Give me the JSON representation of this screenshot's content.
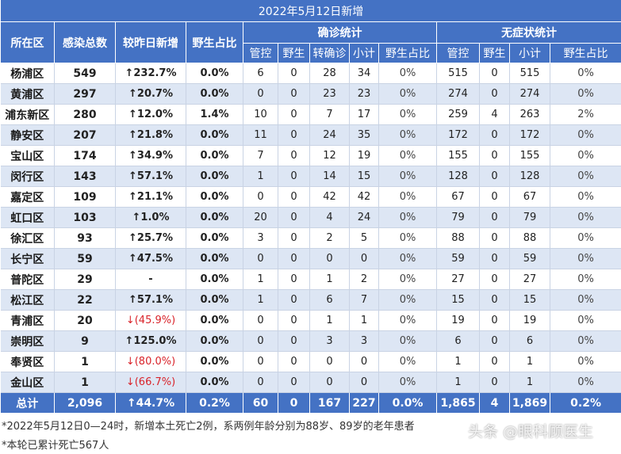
{
  "title": "2022年5月12日新增",
  "headers": {
    "district": "所在区",
    "total": "感染总数",
    "change": "较昨日新增",
    "wild_ratio": "野生占比",
    "confirmed_group": "确诊统计",
    "asymptomatic_group": "无症状统计",
    "confirmed_sub": [
      "管控",
      "野生",
      "转确诊",
      "小计",
      "野生占比"
    ],
    "asymptomatic_sub": [
      "管控",
      "野生",
      "小计",
      "野生占比"
    ]
  },
  "chart_data": {
    "type": "table",
    "columns": [
      "所在区",
      "感染总数",
      "较昨日新增",
      "野生占比",
      "确诊-管控",
      "确诊-野生",
      "确诊-转确诊",
      "确诊-小计",
      "确诊-野生占比",
      "无症状-管控",
      "无症状-野生",
      "无症状-小计",
      "无症状-野生占比"
    ],
    "rows": [
      [
        "杨浦区",
        "549",
        "↑232.7%",
        "0.0%",
        "6",
        "0",
        "28",
        "34",
        "0%",
        "515",
        "0",
        "515",
        "0%"
      ],
      [
        "黄浦区",
        "297",
        "↑20.7%",
        "0.0%",
        "0",
        "0",
        "23",
        "23",
        "0%",
        "274",
        "0",
        "274",
        "0%"
      ],
      [
        "浦东新区",
        "280",
        "↑12.0%",
        "1.4%",
        "10",
        "0",
        "7",
        "17",
        "0%",
        "259",
        "4",
        "263",
        "2%"
      ],
      [
        "静安区",
        "207",
        "↑21.8%",
        "0.0%",
        "11",
        "0",
        "24",
        "35",
        "0%",
        "172",
        "0",
        "172",
        "0%"
      ],
      [
        "宝山区",
        "174",
        "↑34.9%",
        "0.0%",
        "7",
        "0",
        "12",
        "19",
        "0%",
        "155",
        "0",
        "155",
        "0%"
      ],
      [
        "闵行区",
        "143",
        "↑57.1%",
        "0.0%",
        "1",
        "0",
        "14",
        "15",
        "0%",
        "128",
        "0",
        "128",
        "0%"
      ],
      [
        "嘉定区",
        "109",
        "↑21.1%",
        "0.0%",
        "0",
        "0",
        "42",
        "42",
        "0%",
        "67",
        "0",
        "67",
        "0%"
      ],
      [
        "虹口区",
        "103",
        "↑1.0%",
        "0.0%",
        "20",
        "0",
        "4",
        "24",
        "0%",
        "79",
        "0",
        "79",
        "0%"
      ],
      [
        "徐汇区",
        "93",
        "↑25.7%",
        "0.0%",
        "3",
        "0",
        "2",
        "5",
        "0%",
        "88",
        "0",
        "88",
        "0%"
      ],
      [
        "长宁区",
        "59",
        "↑47.5%",
        "0.0%",
        "0",
        "0",
        "0",
        "0",
        "0%",
        "59",
        "0",
        "59",
        "0%"
      ],
      [
        "普陀区",
        "29",
        "-",
        "0.0%",
        "1",
        "0",
        "1",
        "2",
        "0%",
        "27",
        "0",
        "27",
        "0%"
      ],
      [
        "松江区",
        "22",
        "↑57.1%",
        "0.0%",
        "1",
        "0",
        "6",
        "7",
        "0%",
        "15",
        "0",
        "15",
        "0%"
      ],
      [
        "青浦区",
        "20",
        "↓(45.9%)",
        "0.0%",
        "0",
        "0",
        "1",
        "1",
        "0%",
        "19",
        "0",
        "19",
        "0%"
      ],
      [
        "崇明区",
        "9",
        "↑125.0%",
        "0.0%",
        "0",
        "0",
        "3",
        "3",
        "0%",
        "6",
        "0",
        "6",
        "0%"
      ],
      [
        "奉贤区",
        "1",
        "↓(80.0%)",
        "0.0%",
        "0",
        "0",
        "0",
        "0",
        "0%",
        "1",
        "0",
        "1",
        "0%"
      ],
      [
        "金山区",
        "1",
        "↓(66.7%)",
        "0.0%",
        "0",
        "0",
        "0",
        "0",
        "0%",
        "1",
        "0",
        "1",
        "0%"
      ]
    ],
    "totals": [
      "总计",
      "2,096",
      "↑44.7%",
      "0.2%",
      "60",
      "0",
      "167",
      "227",
      "0.0%",
      "1,865",
      "4",
      "1,869",
      "0.2%"
    ]
  },
  "notes": [
    "*2022年5月12日0—24时，新增本土死亡2例，系两例年龄分别为88岁、89岁的老年患者",
    "*本轮已累计死亡567人"
  ],
  "watermark": "头条 @眼科顾医生",
  "colors": {
    "header_bg": "#4472c4",
    "stripe_bg": "#dde6f4",
    "negative_text": "#d9232a"
  }
}
